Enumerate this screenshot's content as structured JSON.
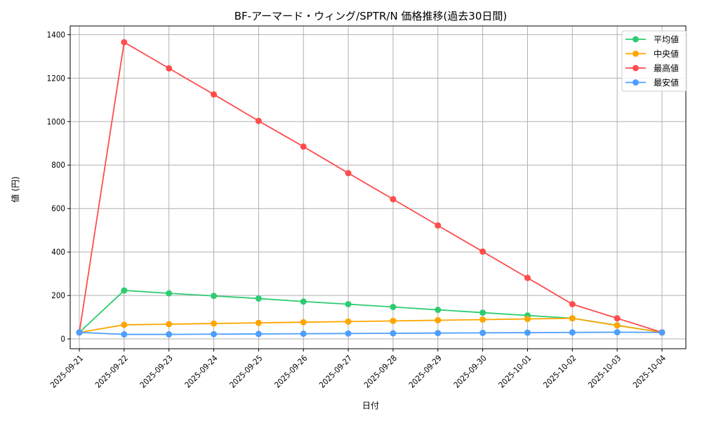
{
  "chart_data": {
    "type": "line",
    "title": "BF-アーマード・ウィング/SPTR/N 価格推移(過去30日間)",
    "xlabel": "日付",
    "ylabel": "値 (円)",
    "ylim": [
      -45,
      1440
    ],
    "yticks": [
      0,
      200,
      400,
      600,
      800,
      1000,
      1200,
      1400
    ],
    "grid": true,
    "legend_position": "upper right",
    "x": [
      "2025-09-21",
      "2025-09-22",
      "2025-09-23",
      "2025-09-24",
      "2025-09-25",
      "2025-09-26",
      "2025-09-27",
      "2025-09-28",
      "2025-09-29",
      "2025-09-30",
      "2025-10-01",
      "2025-10-02",
      "2025-10-03",
      "2025-10-04"
    ],
    "series": [
      {
        "name": "平均値",
        "color": "#2ecc71",
        "values": [
          30,
          223,
          210,
          198,
          186,
          172,
          160,
          147,
          134,
          121,
          108,
          95,
          63,
          30
        ]
      },
      {
        "name": "中央値",
        "color": "#ffa500",
        "values": [
          30,
          65,
          68,
          71,
          74,
          77,
          80,
          83,
          86,
          89,
          92,
          95,
          62,
          30
        ]
      },
      {
        "name": "最高値",
        "color": "#ff4d4d",
        "values": [
          30,
          1365,
          1245,
          1125,
          1003,
          885,
          763,
          643,
          522,
          402,
          281,
          160,
          95,
          30
        ]
      },
      {
        "name": "最安値",
        "color": "#4d9eff",
        "values": [
          30,
          21,
          21,
          22,
          23,
          24,
          25,
          26,
          27,
          28,
          29,
          30,
          31,
          30
        ]
      }
    ]
  }
}
